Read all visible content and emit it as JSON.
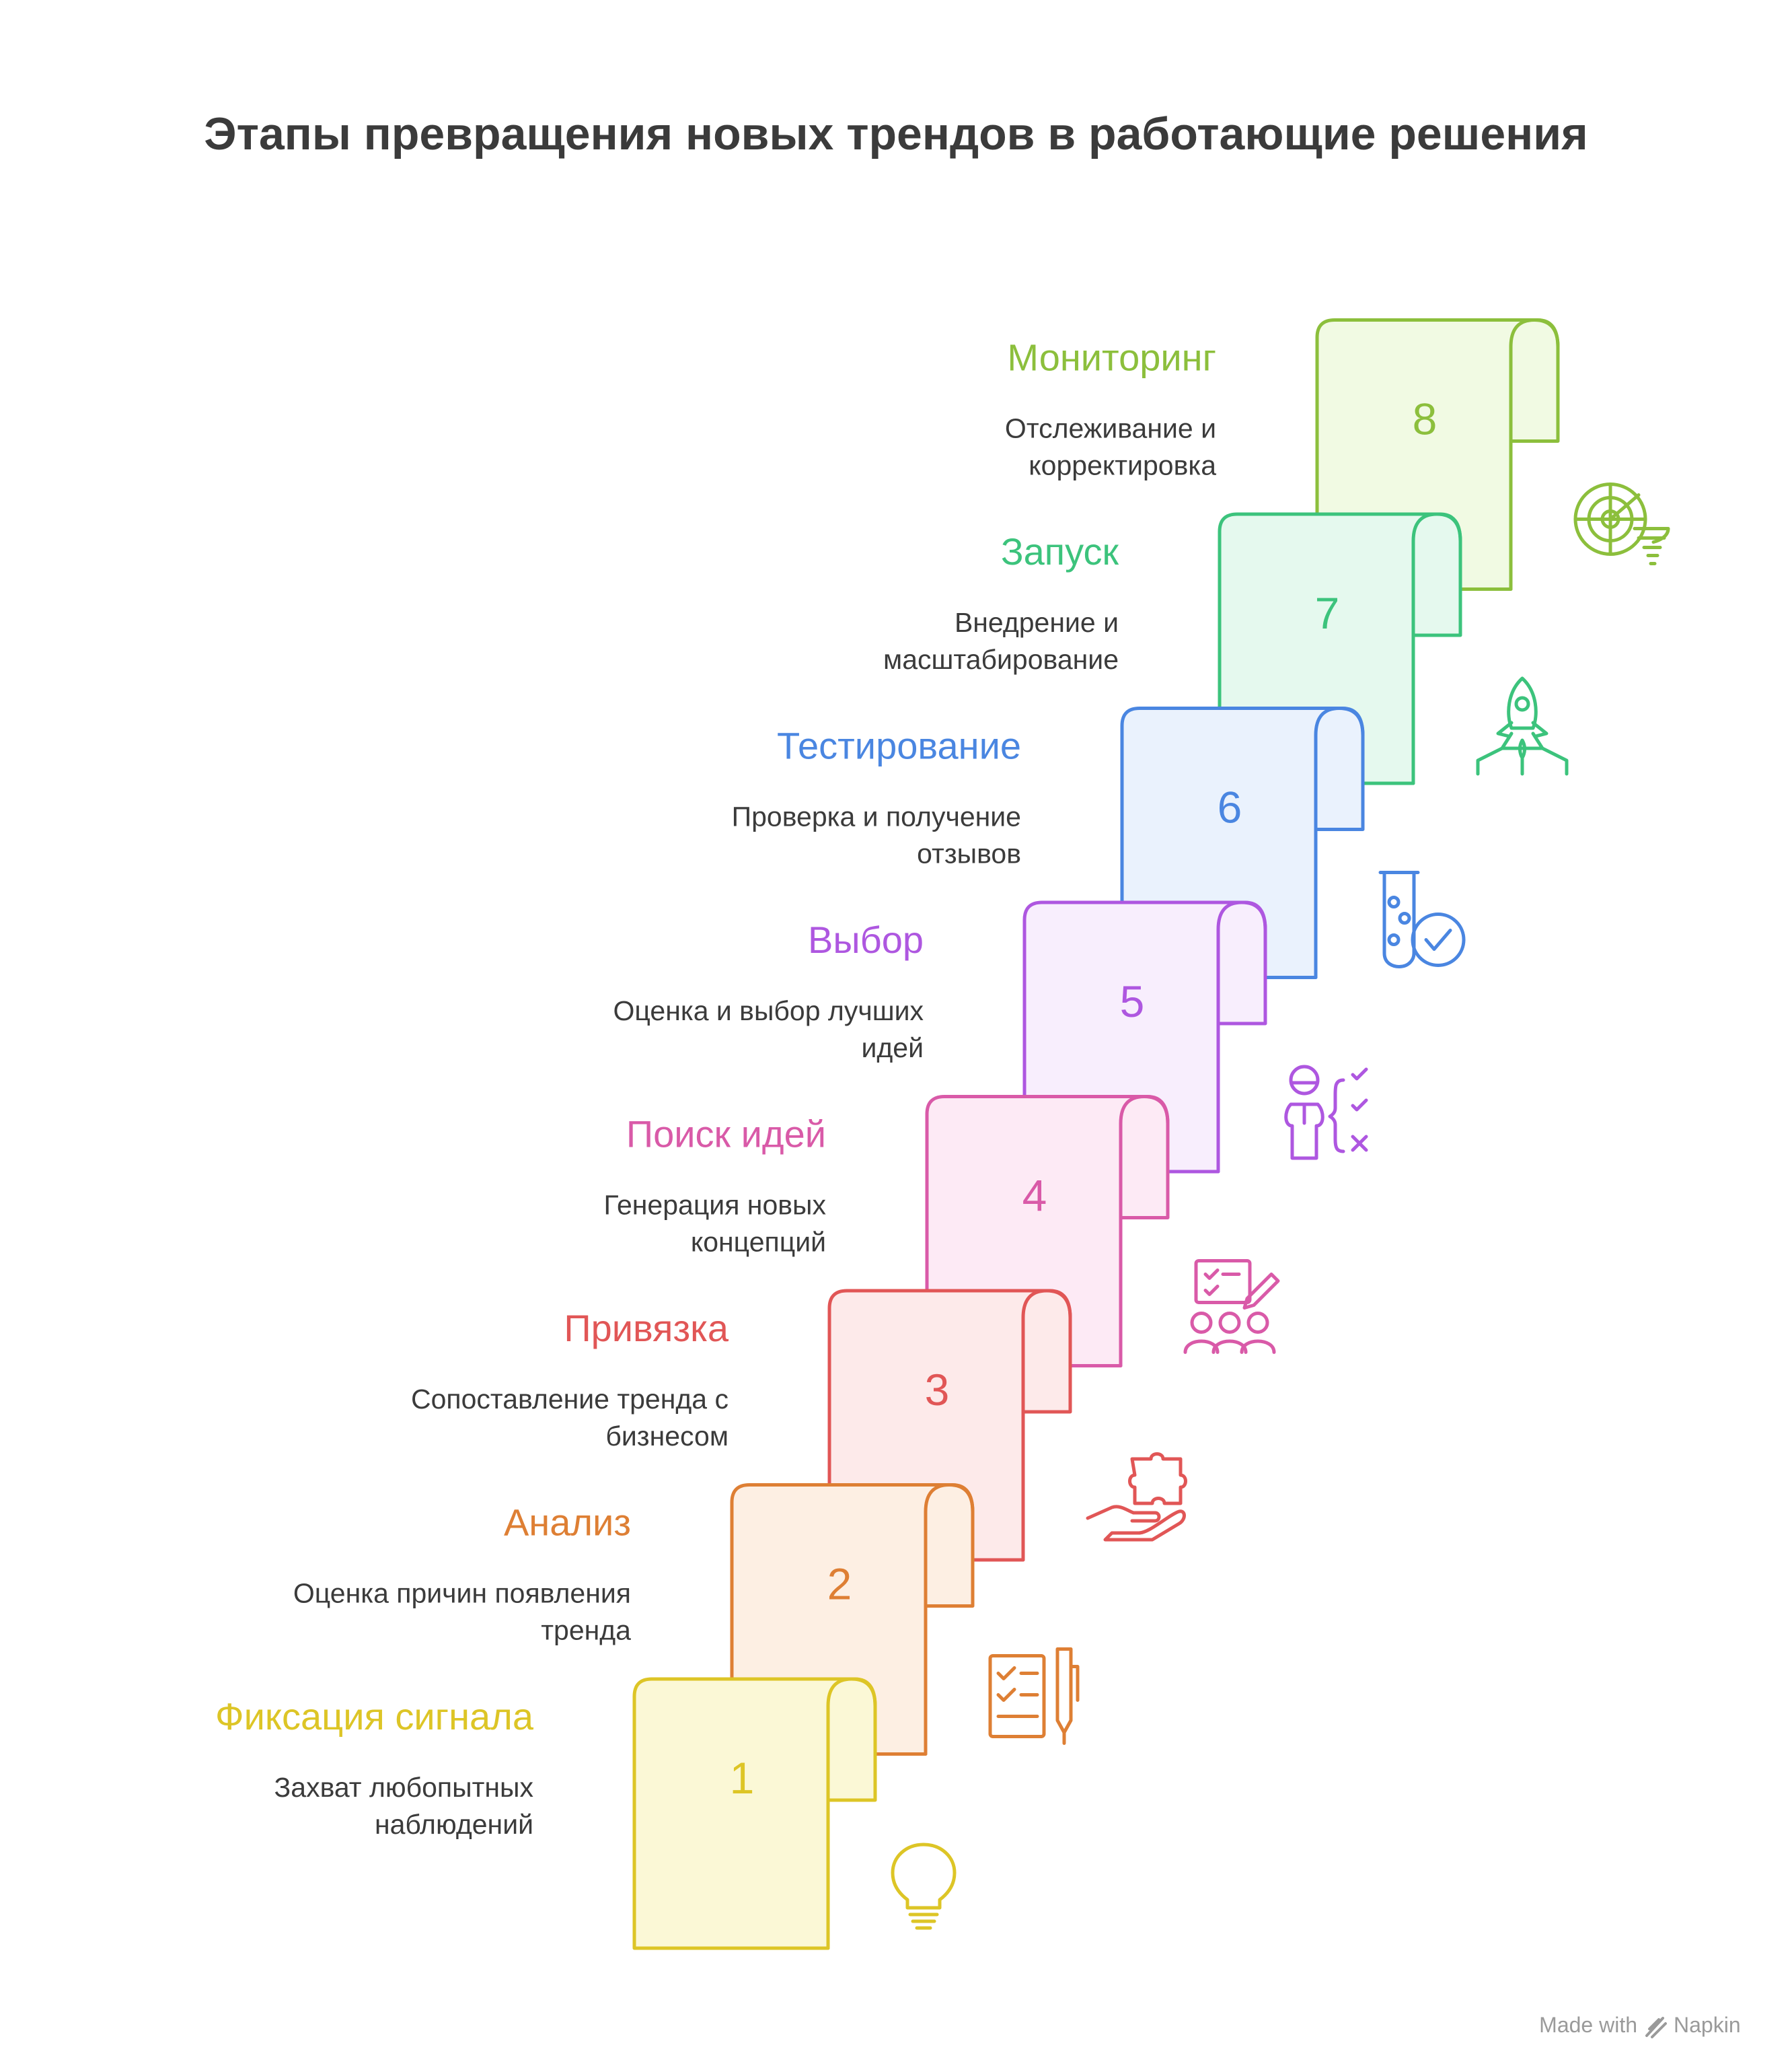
{
  "title": "Этапы превращения новых трендов в работающие решения",
  "footer": {
    "made_with": "Made with",
    "brand": "Napkin"
  },
  "steps": [
    {
      "number": "1",
      "title": "Фиксация сигнала",
      "desc_line1": "Захват любопытных",
      "desc_line2": "наблюдений",
      "icon": "lightbulb-icon",
      "color": "#ddc526",
      "fill": "#fbf8d6"
    },
    {
      "number": "2",
      "title": "Анализ",
      "desc_line1": "Оценка причин появления",
      "desc_line2": "тренда",
      "icon": "checklist-pen-icon",
      "color": "#de7f34",
      "fill": "#fdefe3"
    },
    {
      "number": "3",
      "title": "Привязка",
      "desc_line1": "Сопоставление тренда с",
      "desc_line2": "бизнесом",
      "icon": "puzzle-hand-icon",
      "color": "#e15656",
      "fill": "#fdeaea"
    },
    {
      "number": "4",
      "title": "Поиск идей",
      "desc_line1": "Генерация новых",
      "desc_line2": "концепций",
      "icon": "team-brainstorm-icon",
      "color": "#d95aa8",
      "fill": "#fdeaf5"
    },
    {
      "number": "5",
      "title": "Выбор",
      "desc_line1": "Оценка и выбор лучших",
      "desc_line2": "идей",
      "icon": "person-checklist-icon",
      "color": "#ae57e0",
      "fill": "#f8eefd"
    },
    {
      "number": "6",
      "title": "Тестирование",
      "desc_line1": "Проверка и получение",
      "desc_line2": "отзывов",
      "icon": "test-tube-check-icon",
      "color": "#4a86e1",
      "fill": "#eaf2fd"
    },
    {
      "number": "7",
      "title": "Запуск",
      "desc_line1": "Внедрение и",
      "desc_line2": "масштабирование",
      "icon": "rocket-launch-icon",
      "color": "#3cc37c",
      "fill": "#e5f9ee"
    },
    {
      "number": "8",
      "title": "Мониторинг",
      "desc_line1": "Отслеживание и",
      "desc_line2": "корректировка",
      "icon": "radar-tornado-icon",
      "color": "#8cbf3c",
      "fill": "#f1fae3"
    }
  ]
}
